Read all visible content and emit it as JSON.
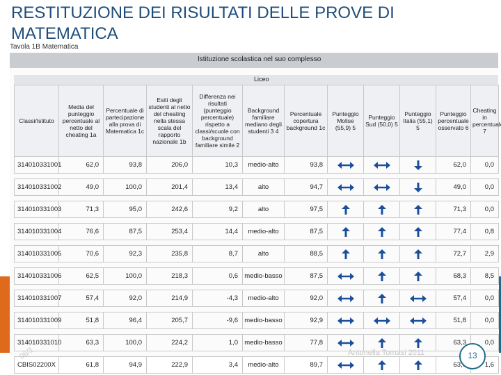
{
  "title": "RESTITUZIONE DEI RISULTATI DELLE PROVE DI MATEMATICA",
  "table_label": "Tavola 1B Matematica",
  "group_header": "Istituzione scolastica nel suo complesso",
  "subgroup_header": "Liceo",
  "columns": [
    "Classi/Istituto",
    "Media del punteggio percentuale al netto del cheating 1a",
    "Percentuale di partecipazione alla prova di Matematica 1c",
    "Esiti degli studenti al netto del cheating nella stessa scala del rapporto nazionale 1b",
    "Differenza nei risultati (punteggio percentuale) rispetto a classi/scuole con background familiare simile 2",
    "Background familiare mediano degli studenti 3 4",
    "Percentuale copertura background 1c",
    "Punteggio Molise (55,9) 5",
    "Punteggio Sud (50,0) 5",
    "Punteggio Italia (55,1) 5",
    "Punteggio percentuale osservato 6",
    "Cheating in percentuale 7"
  ],
  "rows": [
    {
      "id": "314010331001",
      "media": "62,0",
      "partecipazione": "93,8",
      "esiti": "206,0",
      "differenza": "10,3",
      "background": "medio-alto",
      "copertura": "93,8",
      "molise": "equal",
      "sud": "equal",
      "italia": "down",
      "osservato": "62,0",
      "cheating": "0,0"
    },
    {
      "id": "314010331002",
      "media": "49,0",
      "partecipazione": "100,0",
      "esiti": "201,4",
      "differenza": "13,4",
      "background": "alto",
      "copertura": "94,7",
      "molise": "equal",
      "sud": "equal",
      "italia": "down",
      "osservato": "49,0",
      "cheating": "0,0"
    },
    {
      "id": "314010331003",
      "media": "71,3",
      "partecipazione": "95,0",
      "esiti": "242,6",
      "differenza": "9,2",
      "background": "alto",
      "copertura": "97,5",
      "molise": "up",
      "sud": "up",
      "italia": "up",
      "osservato": "71,3",
      "cheating": "0,0"
    },
    {
      "id": "314010331004",
      "media": "76,6",
      "partecipazione": "87,5",
      "esiti": "253,4",
      "differenza": "14,4",
      "background": "medio-alto",
      "copertura": "87,5",
      "molise": "up",
      "sud": "up",
      "italia": "up",
      "osservato": "77,4",
      "cheating": "0,8"
    },
    {
      "id": "314010331005",
      "media": "70,6",
      "partecipazione": "92,3",
      "esiti": "235,8",
      "differenza": "8,7",
      "background": "alto",
      "copertura": "88,5",
      "molise": "up",
      "sud": "up",
      "italia": "up",
      "osservato": "72,7",
      "cheating": "2,9"
    },
    {
      "id": "314010331006",
      "media": "62,5",
      "partecipazione": "100,0",
      "esiti": "218,3",
      "differenza": "0,6",
      "background": "medio-basso",
      "copertura": "87,5",
      "molise": "equal",
      "sud": "up",
      "italia": "up",
      "osservato": "68,3",
      "cheating": "8,5"
    },
    {
      "id": "314010331007",
      "media": "57,4",
      "partecipazione": "92,0",
      "esiti": "214,9",
      "differenza": "-4,3",
      "background": "medio-alto",
      "copertura": "92,0",
      "molise": "equal",
      "sud": "up",
      "italia": "equal",
      "osservato": "57,4",
      "cheating": "0,0"
    },
    {
      "id": "314010331009",
      "media": "51,8",
      "partecipazione": "96,4",
      "esiti": "205,7",
      "differenza": "-9,6",
      "background": "medio-basso",
      "copertura": "92,9",
      "molise": "equal",
      "sud": "equal",
      "italia": "equal",
      "osservato": "51,8",
      "cheating": "0,0"
    },
    {
      "id": "314010331010",
      "media": "63,3",
      "partecipazione": "100,0",
      "esiti": "224,2",
      "differenza": "1,0",
      "background": "medio-basso",
      "copertura": "77,8",
      "molise": "equal",
      "sud": "up",
      "italia": "up",
      "osservato": "63,3",
      "cheating": "0,0"
    },
    {
      "id": "CBIS02200X",
      "media": "61,8",
      "partecipazione": "94,9",
      "esiti": "222,9",
      "differenza": "3,4",
      "background": "medio-alto",
      "copertura": "89,7",
      "molise": "equal",
      "sud": "up",
      "italia": "up",
      "osservato": "63,0",
      "cheating": "1,6"
    }
  ],
  "footer": {
    "text": "Antonella Tomasi 2011",
    "date": "06/1",
    "page": "13"
  },
  "colors": {
    "title": "#1f4d7a",
    "arrow": "#1b4f9c",
    "accent_orange": "#e06a1c",
    "accent_teal": "#1d6c8a"
  }
}
